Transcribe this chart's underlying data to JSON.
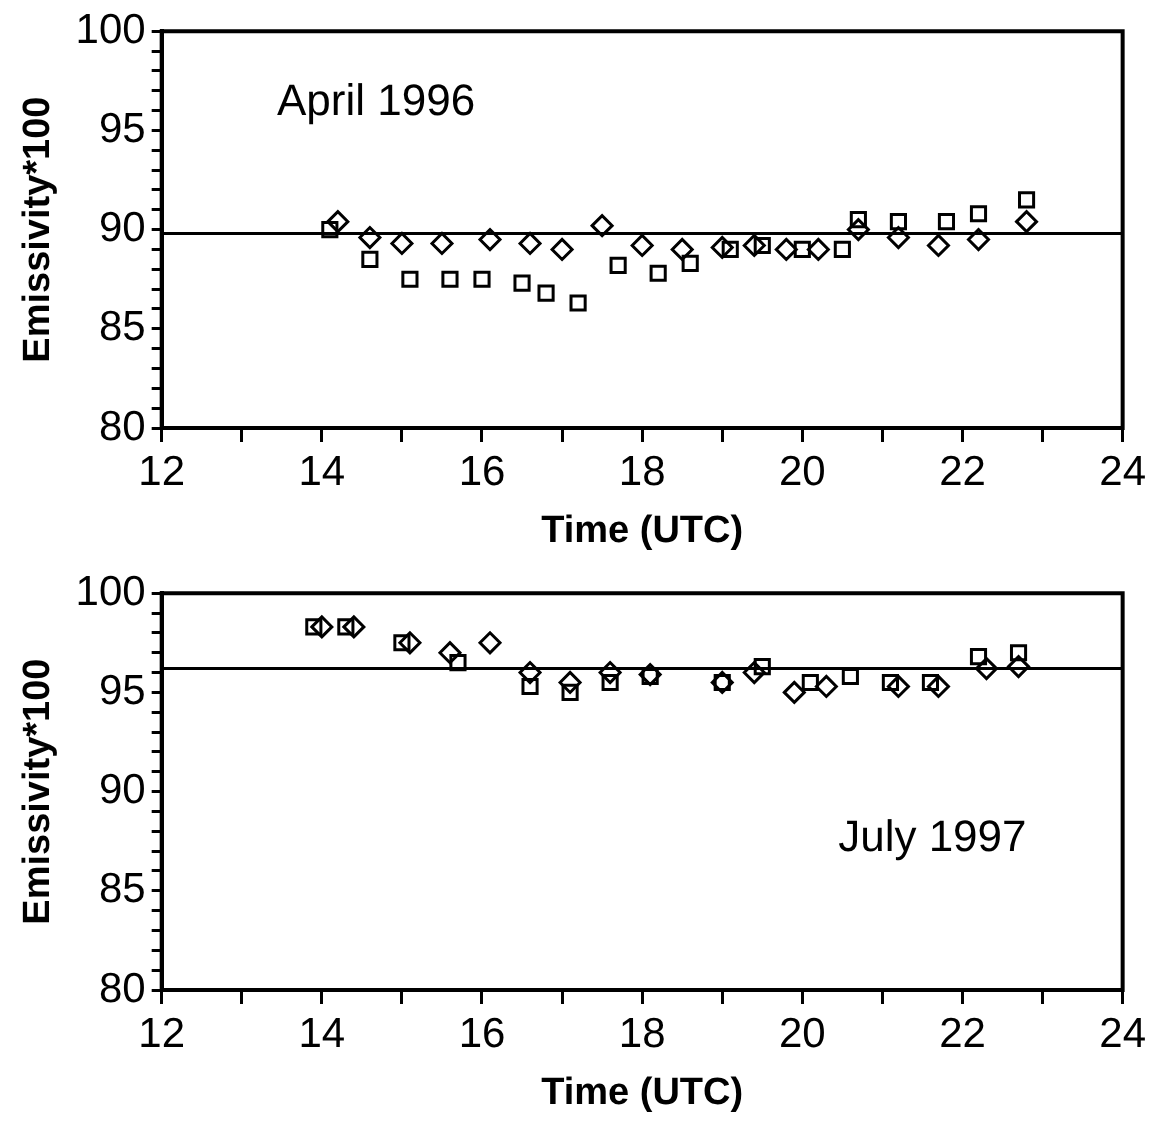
{
  "chart_data": [
    {
      "type": "scatter",
      "title": "April 1996",
      "xlabel": "Time (UTC)",
      "ylabel": "Emissivity*100",
      "grid": false,
      "legend": false,
      "xlim": [
        12,
        24
      ],
      "xticks": [
        12,
        {
          "value": 13,
          "label": null
        },
        14,
        {
          "value": 15,
          "label": null
        },
        16,
        {
          "value": 17,
          "label": null
        },
        18,
        {
          "value": 19,
          "label": null
        },
        20,
        {
          "value": 21,
          "label": null
        },
        22,
        {
          "value": 23,
          "label": null
        },
        24
      ],
      "ylim": [
        80,
        100
      ],
      "yticks": [
        80,
        {
          "value": 81,
          "label": null
        },
        {
          "value": 82,
          "label": null
        },
        {
          "value": 83,
          "label": null
        },
        {
          "value": 84,
          "label": null
        },
        85,
        {
          "value": 86,
          "label": null
        },
        {
          "value": 87,
          "label": null
        },
        {
          "value": 88,
          "label": null
        },
        {
          "value": 89,
          "label": null
        },
        90,
        {
          "value": 91,
          "label": null
        },
        {
          "value": 92,
          "label": null
        },
        {
          "value": 93,
          "label": null
        },
        {
          "value": 94,
          "label": null
        },
        95,
        {
          "value": 96,
          "label": null
        },
        {
          "value": 97,
          "label": null
        },
        {
          "value": 98,
          "label": null
        },
        {
          "value": 99,
          "label": null
        },
        100
      ],
      "ref_lines": [
        {
          "axis": "y",
          "value": 89.8,
          "color": "#000000"
        }
      ],
      "series": [
        {
          "color": "#000000",
          "marker": "diamond",
          "x": [
            14.2,
            14.6,
            15.0,
            15.5,
            16.1,
            16.6,
            17.0,
            17.5,
            18.0,
            18.5,
            19.0,
            19.4,
            19.8,
            20.2,
            20.7,
            21.2,
            21.7,
            22.2,
            22.8
          ],
          "values": [
            90.4,
            89.6,
            89.3,
            89.3,
            89.5,
            89.3,
            89.0,
            90.2,
            89.2,
            89.0,
            89.1,
            89.2,
            89.0,
            89.0,
            90.0,
            89.6,
            89.2,
            89.5,
            90.4
          ]
        },
        {
          "color": "#000000",
          "marker": "square",
          "x": [
            14.1,
            14.6,
            15.1,
            15.6,
            16.0,
            16.5,
            16.8,
            17.2,
            17.7,
            18.2,
            18.6,
            19.1,
            19.5,
            20.0,
            20.5,
            20.7,
            21.2,
            21.8,
            22.2,
            22.8
          ],
          "values": [
            90.0,
            88.5,
            87.5,
            87.5,
            87.5,
            87.3,
            86.8,
            86.3,
            88.2,
            87.8,
            88.3,
            89.0,
            89.2,
            89.0,
            89.0,
            90.5,
            90.4,
            90.4,
            90.8,
            91.5
          ]
        }
      ]
    },
    {
      "type": "scatter",
      "title": "July 1997",
      "xlabel": "Time (UTC)",
      "ylabel": "Emissivity*100",
      "grid": false,
      "legend": false,
      "xlim": [
        12,
        24
      ],
      "xticks": [
        12,
        {
          "value": 13,
          "label": null
        },
        14,
        {
          "value": 15,
          "label": null
        },
        16,
        {
          "value": 17,
          "label": null
        },
        18,
        {
          "value": 19,
          "label": null
        },
        20,
        {
          "value": 21,
          "label": null
        },
        22,
        {
          "value": 23,
          "label": null
        },
        24
      ],
      "ylim": [
        80,
        100
      ],
      "yticks": [
        80,
        {
          "value": 81,
          "label": null
        },
        {
          "value": 82,
          "label": null
        },
        {
          "value": 83,
          "label": null
        },
        {
          "value": 84,
          "label": null
        },
        85,
        {
          "value": 86,
          "label": null
        },
        {
          "value": 87,
          "label": null
        },
        {
          "value": 88,
          "label": null
        },
        {
          "value": 89,
          "label": null
        },
        90,
        {
          "value": 91,
          "label": null
        },
        {
          "value": 92,
          "label": null
        },
        {
          "value": 93,
          "label": null
        },
        {
          "value": 94,
          "label": null
        },
        95,
        {
          "value": 96,
          "label": null
        },
        {
          "value": 97,
          "label": null
        },
        {
          "value": 98,
          "label": null
        },
        {
          "value": 99,
          "label": null
        },
        100
      ],
      "ref_lines": [
        {
          "axis": "y",
          "value": 96.2,
          "color": "#000000"
        }
      ],
      "series": [
        {
          "color": "#000000",
          "marker": "diamond",
          "x": [
            14.0,
            14.4,
            15.1,
            15.6,
            16.1,
            16.6,
            17.1,
            17.6,
            18.1,
            19.0,
            19.4,
            19.9,
            20.3,
            21.2,
            21.7,
            22.3,
            22.7
          ],
          "values": [
            98.3,
            98.3,
            97.5,
            97.0,
            97.5,
            96.0,
            95.5,
            96.0,
            95.9,
            95.5,
            96.0,
            95.0,
            95.3,
            95.3,
            95.3,
            96.2,
            96.3
          ]
        },
        {
          "color": "#000000",
          "marker": "square",
          "x": [
            13.9,
            14.3,
            15.0,
            15.7,
            16.6,
            17.1,
            17.6,
            18.1,
            19.0,
            19.5,
            20.1,
            20.6,
            21.1,
            21.6,
            22.2,
            22.7
          ],
          "values": [
            98.3,
            98.3,
            97.5,
            96.5,
            95.3,
            95.0,
            95.5,
            95.8,
            95.5,
            96.3,
            95.5,
            95.8,
            95.5,
            95.5,
            96.8,
            97.0
          ]
        }
      ]
    }
  ]
}
